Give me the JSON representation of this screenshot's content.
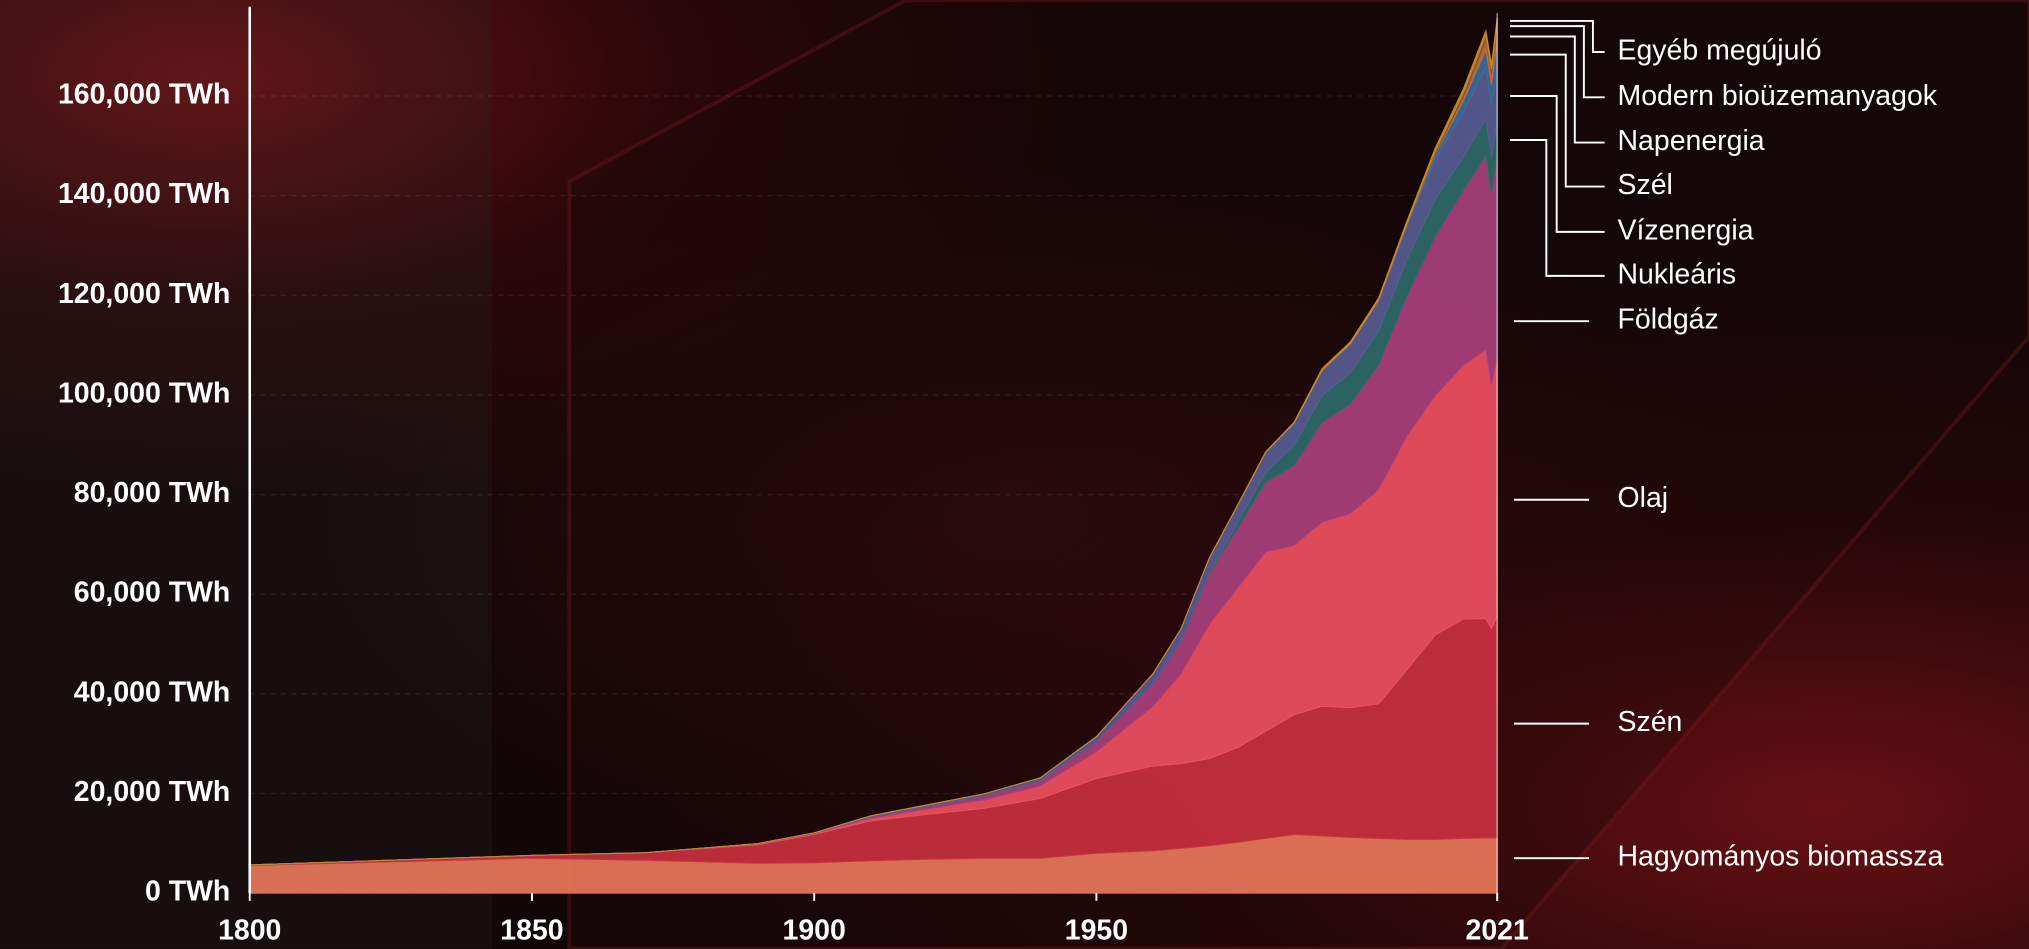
{
  "chart_data": {
    "type": "stacked-area",
    "x": [
      1800,
      1850,
      1870,
      1890,
      1900,
      1910,
      1920,
      1930,
      1940,
      1950,
      1960,
      1965,
      1970,
      1975,
      1980,
      1985,
      1990,
      1995,
      2000,
      2005,
      2010,
      2015,
      2019,
      2020,
      2021
    ],
    "xlim": [
      1800,
      2021
    ],
    "xticks": [
      1800,
      1850,
      1900,
      1950,
      2021
    ],
    "ylim": [
      0,
      180000
    ],
    "yticks": [
      {
        "value": 0,
        "label": "0 TWh"
      },
      {
        "value": 20000,
        "label": "20,000 TWh"
      },
      {
        "value": 40000,
        "label": "40,000 TWh"
      },
      {
        "value": 60000,
        "label": "60,000 TWh"
      },
      {
        "value": 80000,
        "label": "80,000 TWh"
      },
      {
        "value": 100000,
        "label": "100,000 TWh"
      },
      {
        "value": 120000,
        "label": "120,000 TWh"
      },
      {
        "value": 140000,
        "label": "140,000 TWh"
      },
      {
        "value": 160000,
        "label": "160,000 TWh"
      }
    ],
    "grid": true,
    "series": [
      {
        "name": "Hagyományos biomassza",
        "color": "#e8775a",
        "values": [
          5556,
          7000,
          6600,
          6000,
          6100,
          6500,
          6800,
          7000,
          7000,
          8000,
          8500,
          9000,
          9500,
          10200,
          11000,
          11800,
          11500,
          11200,
          11000,
          10800,
          10800,
          11000,
          11100,
          11100,
          11100
        ]
      },
      {
        "name": "Szén",
        "color": "#c9303f",
        "values": [
          97,
          570,
          1500,
          3700,
          5700,
          8000,
          9000,
          10000,
          12000,
          15000,
          17000,
          17000,
          17500,
          19000,
          21500,
          24000,
          26000,
          26000,
          27000,
          34000,
          41000,
          44000,
          44000,
          42000,
          44500
        ]
      },
      {
        "name": "Olaj",
        "color": "#ef5062",
        "values": [
          0,
          0,
          6,
          180,
          180,
          500,
          1100,
          1700,
          2500,
          5400,
          12000,
          18000,
          27000,
          32000,
          36000,
          34000,
          37000,
          39000,
          43000,
          47000,
          48000,
          51000,
          54000,
          49000,
          52000
        ]
      },
      {
        "name": "Földgáz",
        "color": "#a8407c",
        "values": [
          0,
          0,
          0,
          60,
          60,
          300,
          500,
          800,
          1000,
          2000,
          4500,
          6500,
          10000,
          12000,
          14000,
          16000,
          20000,
          22000,
          25000,
          28000,
          32000,
          35000,
          39000,
          38500,
          40500
        ]
      },
      {
        "name": "Nukleáris",
        "color": "#2d6b6a",
        "values": [
          0,
          0,
          0,
          0,
          0,
          0,
          0,
          0,
          0,
          0,
          0,
          60,
          230,
          1100,
          2000,
          4000,
          5400,
          6200,
          6800,
          7300,
          7400,
          6800,
          7300,
          7000,
          7000
        ]
      },
      {
        "name": "Vízenergia",
        "color": "#585c92",
        "values": [
          0,
          0,
          0,
          0,
          50,
          200,
          300,
          400,
          600,
          1000,
          2000,
          2500,
          3000,
          3500,
          4000,
          4500,
          5000,
          5800,
          6100,
          6800,
          8000,
          9000,
          10400,
          10600,
          11000
        ]
      },
      {
        "name": "Szél",
        "color": "#3e6c9c",
        "values": [
          0,
          0,
          0,
          0,
          0,
          0,
          0,
          0,
          0,
          0,
          0,
          0,
          0,
          0,
          0,
          0,
          0,
          20,
          80,
          250,
          900,
          2200,
          3500,
          4000,
          4800
        ]
      },
      {
        "name": "Napenergia",
        "color": "#c96a3a",
        "values": [
          0,
          0,
          0,
          0,
          0,
          0,
          0,
          0,
          0,
          0,
          0,
          0,
          0,
          0,
          0,
          0,
          0,
          0,
          0,
          0,
          80,
          700,
          1800,
          2200,
          2700
        ]
      },
      {
        "name": "Modern bioüzemanyagok",
        "color": "#8f5a2e",
        "values": [
          0,
          0,
          0,
          0,
          0,
          0,
          0,
          0,
          0,
          0,
          0,
          0,
          0,
          0,
          0,
          0,
          100,
          100,
          100,
          200,
          700,
          900,
          1100,
          1000,
          1100
        ]
      },
      {
        "name": "Egyéb megújuló",
        "color": "#c28a30",
        "values": [
          0,
          0,
          0,
          0,
          0,
          0,
          0,
          0,
          0,
          0,
          0,
          0,
          50,
          70,
          100,
          200,
          300,
          350,
          400,
          500,
          600,
          800,
          900,
          900,
          950
        ]
      }
    ]
  }
}
